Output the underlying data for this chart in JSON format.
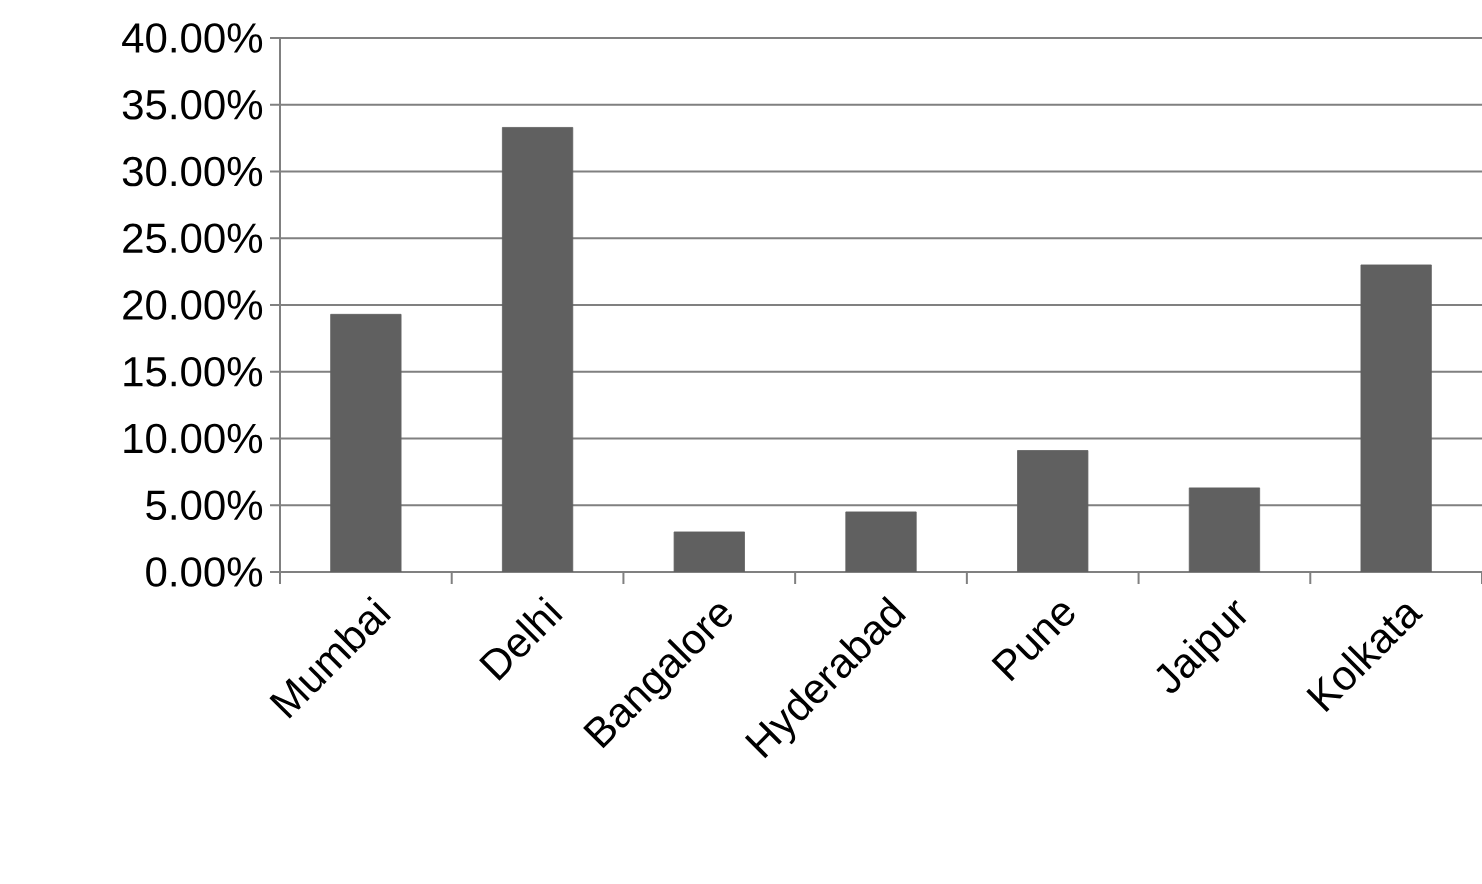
{
  "chart_data": {
    "type": "bar",
    "categories": [
      "Mumbai",
      "Delhi",
      "Bangalore",
      "Hyderabad",
      "Pune",
      "Jaipur",
      "Kolkata"
    ],
    "values": [
      19.3,
      33.3,
      3.0,
      4.5,
      9.1,
      6.3,
      23.0
    ],
    "color": "#606060",
    "ylim": [
      0,
      40
    ],
    "yticks": [
      {
        "value": 0,
        "label": "0.00%"
      },
      {
        "value": 5,
        "label": "5.00%"
      },
      {
        "value": 10,
        "label": "10.00%"
      },
      {
        "value": 15,
        "label": "15.00%"
      },
      {
        "value": 20,
        "label": "20.00%"
      },
      {
        "value": 25,
        "label": "25.00%"
      },
      {
        "value": 30,
        "label": "30.00%"
      },
      {
        "value": 35,
        "label": "35.00%"
      },
      {
        "value": 40,
        "label": "40.00%"
      }
    ],
    "grid": "y"
  }
}
